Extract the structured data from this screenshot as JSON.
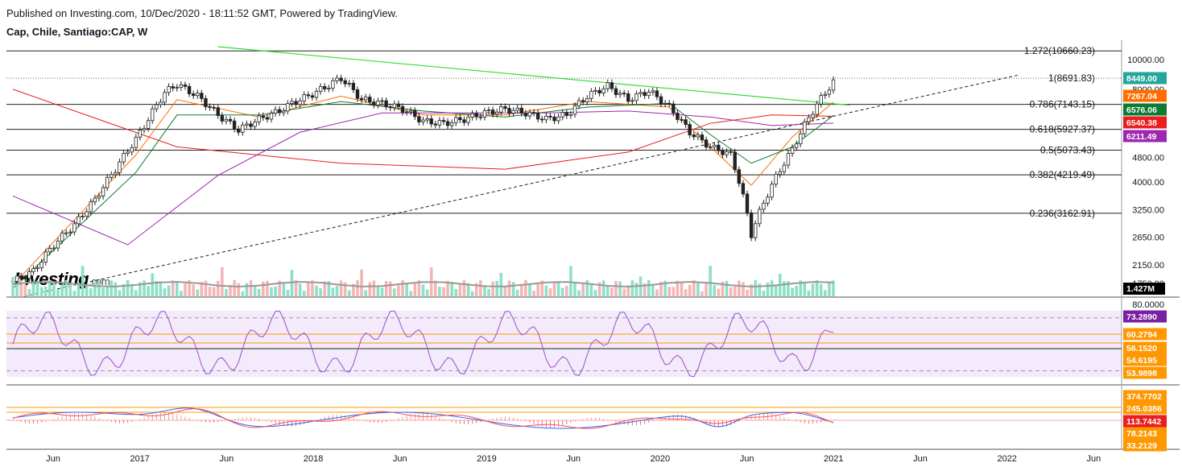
{
  "header": {
    "published": "Published on Investing.com, 10/Dec/2020 - 18:11:52 GMT, Powered by TradingView.",
    "symbol": "Cap, Chile, Santiago:CAP, W"
  },
  "watermark": {
    "brand": "Investing",
    "suffix": ".com"
  },
  "chart_data": [
    {
      "type": "line",
      "panel": "price",
      "scale": "log",
      "ylim": [
        1700,
        11000
      ],
      "x_tick_labels": [
        "Jun",
        "2017",
        "Jun",
        "2018",
        "Jun",
        "2019",
        "Jun",
        "2020",
        "Jun",
        "2021",
        "Jun",
        "2022",
        "Jun"
      ],
      "y_tick_labels": [
        "10000.00",
        "8000.00",
        "4800.00",
        "4000.00",
        "3250.00",
        "2650.00",
        "2150.00"
      ],
      "y_tick_values": [
        10000,
        8000,
        4800,
        4000,
        3250,
        2650,
        2150
      ],
      "fib_levels": [
        {
          "label": "1.272(10660.23)",
          "value": 10660.23
        },
        {
          "label": "1(8691.83)",
          "value": 8691.83
        },
        {
          "label": "0.786(7143.15)",
          "value": 7143.15
        },
        {
          "label": "0.618(5927.37)",
          "value": 5927.37
        },
        {
          "label": "0.5(5073.43)",
          "value": 5073.43
        },
        {
          "label": "0.382(4219.49)",
          "value": 4219.49
        },
        {
          "label": "0.236(3162.91)",
          "value": 3162.91
        }
      ],
      "price_tags": [
        {
          "label": "8449.00",
          "value": 8449,
          "color": "#26a69a"
        },
        {
          "label": "7267.04",
          "value": 7267.04,
          "color": "#ff6d00"
        },
        {
          "label": "6576.06",
          "value": 6576.06,
          "color": "#0c7b33"
        },
        {
          "label": "6540.38",
          "value": 6540.38,
          "color": "#e91e1e"
        },
        {
          "label": "6211.49",
          "value": 6211.49,
          "color": "#9c27b0"
        }
      ],
      "series": [
        {
          "name": "",
          "color": "#26a69a",
          "x": [
            0,
            5,
            10,
            15,
            20,
            25,
            30,
            33,
            37,
            40,
            45,
            50,
            55,
            60,
            65,
            68,
            72,
            76,
            80,
            85,
            90,
            95,
            100,
            105,
            110,
            115,
            120,
            125,
            130,
            135,
            140,
            145,
            150,
            155,
            160,
            165,
            170,
            175,
            180,
            185,
            190,
            195,
            200
          ],
          "values": [
            1900,
            2050,
            2500,
            2900,
            3500,
            4400,
            5500,
            6400,
            7800,
            8300,
            7600,
            6600,
            5900,
            6400,
            6800,
            7200,
            7600,
            8100,
            8700,
            7400,
            7200,
            6900,
            6300,
            6200,
            6400,
            6700,
            6900,
            6700,
            6400,
            6600,
            7600,
            8200,
            7400,
            7900,
            7000,
            5800,
            5200,
            4900,
            2700,
            3900,
            5100,
            6800,
            8449
          ]
        }
      ],
      "moving_averages": [
        {
          "color": "#ff6d00",
          "x": [
            0,
            30,
            40,
            60,
            80,
            100,
            120,
            140,
            160,
            170,
            180,
            190,
            200
          ],
          "values": [
            1850,
            4900,
            7400,
            6500,
            7600,
            6600,
            6600,
            7300,
            7000,
            5200,
            3900,
            5600,
            7267
          ]
        },
        {
          "color": "#0c7b33",
          "x": [
            0,
            30,
            40,
            60,
            80,
            100,
            120,
            140,
            160,
            170,
            180,
            190,
            200
          ],
          "values": [
            1800,
            4300,
            6600,
            6600,
            7300,
            6800,
            6500,
            7000,
            7200,
            5700,
            4600,
            5200,
            6576
          ]
        },
        {
          "color": "#9c27b0",
          "x": [
            0,
            28,
            50,
            70,
            90,
            110,
            130,
            150,
            170,
            185,
            200
          ],
          "values": [
            3600,
            2500,
            4200,
            5800,
            6700,
            6700,
            6700,
            6800,
            6500,
            6100,
            6211
          ]
        },
        {
          "color": "#e91e1e",
          "x": [
            0,
            40,
            80,
            120,
            150,
            170,
            185,
            200
          ],
          "values": [
            8000,
            5200,
            4600,
            4400,
            5000,
            6200,
            6600,
            6540
          ]
        }
      ]
    },
    {
      "type": "bar",
      "panel": "volume",
      "last_label": "1.427M",
      "y_tick_labels": [
        "1750.00"
      ]
    },
    {
      "type": "line",
      "panel": "rsi",
      "y_tick_labels": [
        "80.0000"
      ],
      "levels": [
        {
          "label": "73.2890",
          "value": 73.289,
          "color": "#7b1fa2"
        },
        {
          "label": "60.2794",
          "value": 60.2794,
          "color": "#ff9800"
        },
        {
          "label": "56.1520",
          "value": 56.152,
          "color": "#ff9800"
        },
        {
          "label": "54.6195",
          "value": 54.6195,
          "color": "#ff9800"
        },
        {
          "label": "53.9898",
          "value": 53.9898,
          "color": "#ff9800"
        }
      ]
    },
    {
      "type": "line",
      "panel": "macd",
      "levels": [
        {
          "label": "374.7702",
          "value": 374.7702,
          "color": "#ff9800"
        },
        {
          "label": "245.0386",
          "value": 245.0386,
          "color": "#ff9800"
        },
        {
          "label": "113.7442",
          "value": 113.7442,
          "color": "#e91e1e"
        },
        {
          "label": "78.2143",
          "value": 78.2143,
          "color": "#ff9800"
        },
        {
          "label": "33.2129",
          "value": 33.2129,
          "color": "#ff9800"
        }
      ]
    }
  ]
}
